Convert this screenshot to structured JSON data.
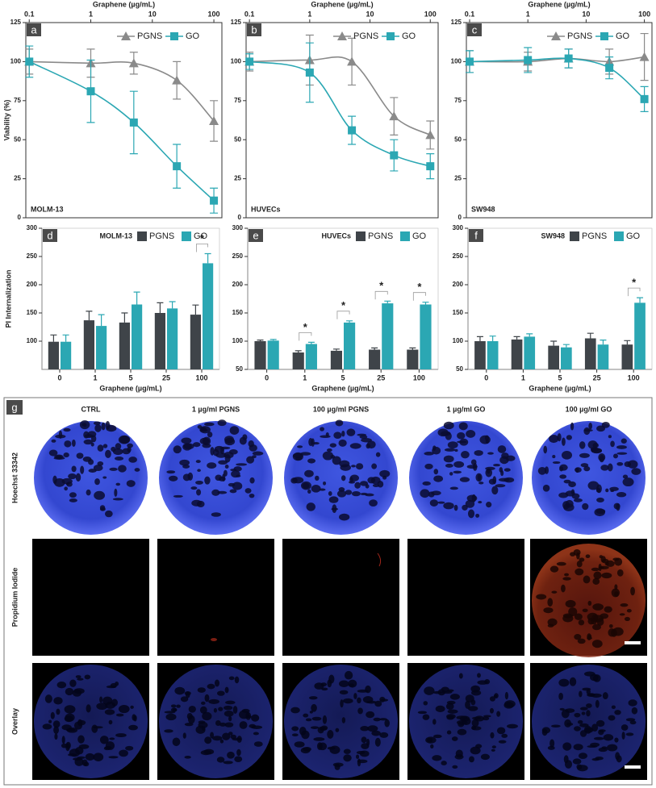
{
  "chart_data": [
    {
      "type": "line",
      "panel": "a",
      "label": "MOLM-13",
      "xlabel": "Graphene (µg/mL)",
      "ylabel": "Viability (%)",
      "log_x": true,
      "legend": "upper right",
      "x": [
        0.1,
        1,
        5,
        25,
        100
      ],
      "xlim": [
        0.088,
        135
      ],
      "xticks": [
        0.1,
        1,
        10,
        100
      ],
      "ylim": [
        0,
        125
      ],
      "yticks": [
        0,
        25,
        50,
        75,
        100,
        125
      ],
      "series": [
        {
          "name": "PGNS",
          "color": "#8a8a8a",
          "marker": "triangle",
          "values": [
            100,
            99,
            99,
            88,
            62
          ],
          "errors": [
            8,
            9,
            7,
            12,
            13
          ]
        },
        {
          "name": "GO",
          "color": "#2ba7b3",
          "marker": "square",
          "values": [
            100,
            81,
            61,
            33,
            11
          ],
          "errors": [
            10,
            20,
            20,
            14,
            8
          ]
        }
      ]
    },
    {
      "type": "line",
      "panel": "b",
      "label": "HUVECs",
      "xlabel": "Graphene (µg/mL)",
      "log_x": true,
      "legend": "upper right",
      "x": [
        0.1,
        1,
        5,
        25,
        100
      ],
      "xlim": [
        0.088,
        135
      ],
      "xticks": [
        0.1,
        1,
        10,
        100
      ],
      "ylim": [
        0,
        125
      ],
      "yticks": [
        0,
        25,
        50,
        75,
        100,
        125
      ],
      "series": [
        {
          "name": "PGNS",
          "color": "#8a8a8a",
          "marker": "triangle",
          "values": [
            100,
            101,
            100,
            65,
            53
          ],
          "errors": [
            6,
            16,
            15,
            12,
            9
          ]
        },
        {
          "name": "GO",
          "color": "#2ba7b3",
          "marker": "square",
          "values": [
            100,
            93,
            56,
            40,
            33
          ],
          "errors": [
            5,
            19,
            9,
            10,
            8
          ]
        }
      ]
    },
    {
      "type": "line",
      "panel": "c",
      "label": "SW948",
      "xlabel": "Graphene (µg/mL)",
      "log_x": true,
      "legend": "upper right",
      "x": [
        0.1,
        1,
        5,
        25,
        100
      ],
      "xlim": [
        0.088,
        135
      ],
      "xticks": [
        0.1,
        1,
        10,
        100
      ],
      "ylim": [
        0,
        125
      ],
      "yticks": [
        0,
        25,
        50,
        75,
        100,
        125
      ],
      "series": [
        {
          "name": "PGNS",
          "color": "#8a8a8a",
          "marker": "triangle",
          "values": [
            100,
            100,
            102,
            100,
            103
          ],
          "errors": [
            7,
            6,
            6,
            8,
            15
          ]
        },
        {
          "name": "GO",
          "color": "#2ba7b3",
          "marker": "square",
          "values": [
            100,
            101,
            102,
            96,
            76
          ],
          "errors": [
            7,
            8,
            6,
            7,
            8
          ]
        }
      ]
    },
    {
      "type": "bar",
      "panel": "d",
      "label": "MOLM-13",
      "xlabel": "Graphene (µg/mL)",
      "ylabel": "PI Internalization",
      "legend": "upper right",
      "categories": [
        "0",
        "1",
        "5",
        "25",
        "100"
      ],
      "ylim": [
        50,
        300
      ],
      "yticks": [
        100,
        150,
        200,
        250,
        300
      ],
      "series": [
        {
          "name": "PGNS",
          "color": "#3f4449",
          "values": [
            99,
            137,
            133,
            150,
            147
          ],
          "errors": [
            12,
            16,
            17,
            18,
            17
          ]
        },
        {
          "name": "GO",
          "color": "#2ba7b3",
          "values": [
            99,
            127,
            165,
            158,
            238
          ],
          "errors": [
            12,
            20,
            22,
            12,
            17
          ]
        }
      ],
      "annotations": [
        {
          "text": "*",
          "category": "100"
        }
      ]
    },
    {
      "type": "bar",
      "panel": "e",
      "label": "HUVECs",
      "xlabel": "Graphene (µg/mL)",
      "legend": "upper right",
      "categories": [
        "0",
        "1",
        "5",
        "25",
        "100"
      ],
      "ylim": [
        50,
        300
      ],
      "yticks": [
        50,
        100,
        150,
        200,
        250,
        300
      ],
      "series": [
        {
          "name": "PGNS",
          "color": "#3f4449",
          "values": [
            100,
            80,
            83,
            85,
            85
          ],
          "errors": [
            2,
            3,
            3,
            3,
            3
          ]
        },
        {
          "name": "GO",
          "color": "#2ba7b3",
          "values": [
            101,
            95,
            133,
            167,
            165
          ],
          "errors": [
            2,
            3,
            3,
            4,
            4
          ]
        }
      ],
      "annotations": [
        {
          "text": "*",
          "category": "1"
        },
        {
          "text": "*",
          "category": "5"
        },
        {
          "text": "*",
          "category": "25"
        },
        {
          "text": "*",
          "category": "100"
        }
      ]
    },
    {
      "type": "bar",
      "panel": "f",
      "label": "SW948",
      "xlabel": "Graphene (µg/mL)",
      "legend": "upper right",
      "categories": [
        "0",
        "1",
        "5",
        "25",
        "100"
      ],
      "ylim": [
        50,
        300
      ],
      "yticks": [
        50,
        100,
        150,
        200,
        250,
        300
      ],
      "series": [
        {
          "name": "PGNS",
          "color": "#3f4449",
          "values": [
            100,
            103,
            92,
            105,
            94
          ],
          "errors": [
            8,
            5,
            8,
            9,
            7
          ]
        },
        {
          "name": "GO",
          "color": "#2ba7b3",
          "values": [
            100,
            108,
            89,
            94,
            168
          ],
          "errors": [
            9,
            5,
            5,
            8,
            9
          ]
        }
      ],
      "annotations": [
        {
          "text": "*",
          "category": "100"
        }
      ]
    }
  ],
  "microscopy": {
    "panel": "g",
    "columns": [
      "CTRL",
      "1 µg/ml PGNS",
      "100 µg/ml PGNS",
      "1 µg/ml GO",
      "100 µg/ml GO"
    ],
    "rows": [
      "Hoechst 33342",
      "Propidium Iodide",
      "Overlay"
    ]
  }
}
